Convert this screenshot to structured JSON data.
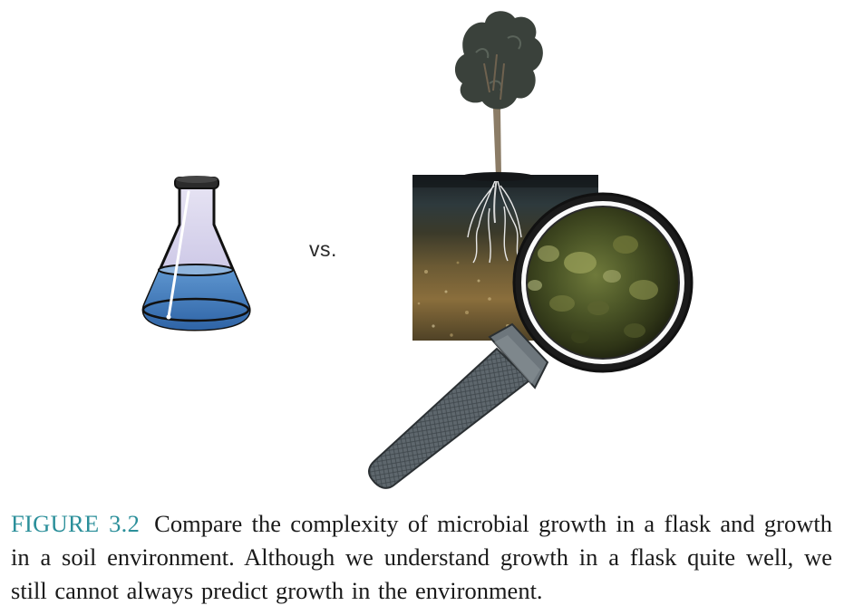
{
  "figure": {
    "vs_label": "vs.",
    "caption_label": "FIGURE 3.2",
    "caption_text": "Compare the complexity of microbial growth in a flask and growth in a soil environment. Although we understand growth in a flask quite well, we still cannot always predict growth in the environment."
  },
  "colors": {
    "caption_label": "#2b8f9a",
    "flask_liquid": "#3f78b6",
    "flask_glass": "#cfcbe8",
    "tree_canopy": "#3c433d",
    "soil_dark": "#2a2d22",
    "lens_rim": "#1d1d1d",
    "handle": "#5c656b"
  },
  "icons": [
    "erlenmeyer-flask",
    "tree",
    "soil-cross-section",
    "magnifying-glass"
  ]
}
